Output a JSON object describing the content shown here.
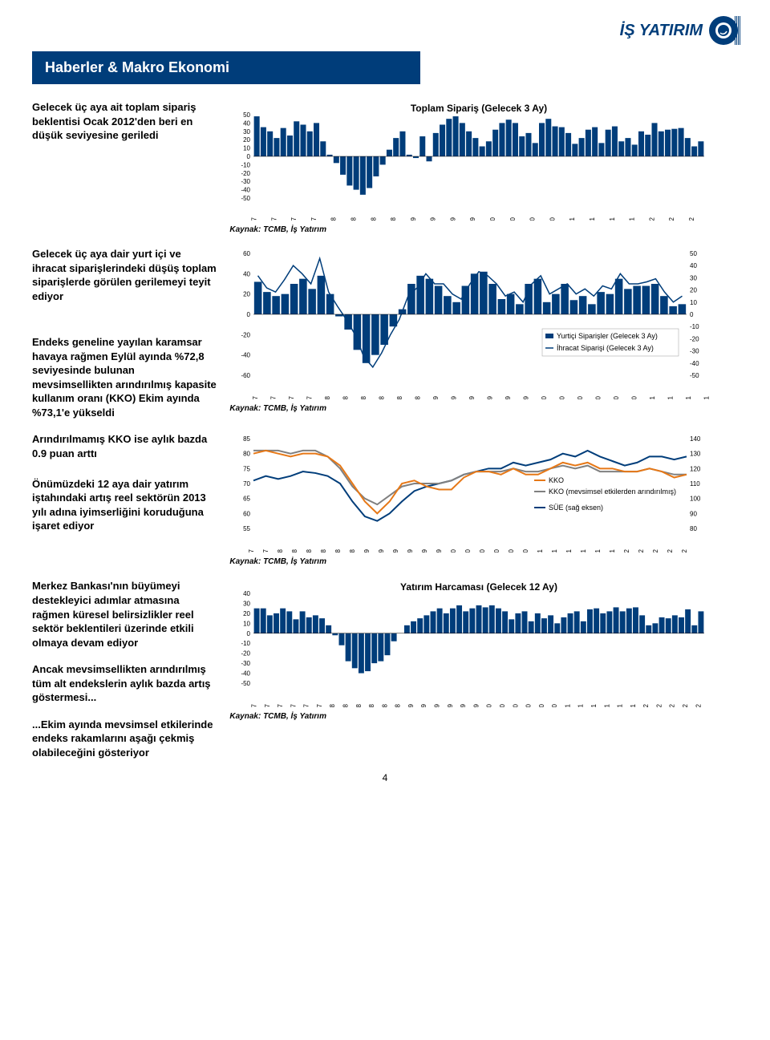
{
  "logo": {
    "text": "İŞ YATIRIM"
  },
  "banner": "Haberler & Makro Ekonomi",
  "page_number": "4",
  "source_label": "Kaynak: TCMB, İş Yatırım",
  "paragraphs": {
    "p1": "Gelecek üç aya ait toplam sipariş beklentisi Ocak 2012'den beri en düşük seviyesine geriledi",
    "p2": "Gelecek üç aya dair yurt içi ve ihracat siparişlerindeki düşüş toplam siparişlerde görülen gerilemeyi teyit ediyor",
    "p3": "Endeks geneline yayılan karamsar havaya rağmen Eylül ayında %72,8 seviyesinde bulunan mevsimsellikten arındırılmış kapasite kullanım oranı (KKO) Ekim ayında %73,1'e yükseldi",
    "p4": "Arındırılmamış KKO ise aylık bazda 0.9 puan arttı",
    "p5": "Önümüzdeki 12 aya dair yatırım iştahındaki artış reel sektörün 2013 yılı adına iyimserliğini koruduğuna işaret ediyor",
    "p6": "Merkez Bankası'nın büyümeyi destekleyici adımlar atmasına rağmen küresel belirsizlikler reel sektör beklentileri üzerinde etkili olmaya devam ediyor",
    "p7": "Ancak mevsimsellikten arındırılmış tüm alt endekslerin aylık bazda artış göstermesi...",
    "p8": "...Ekim ayında mevsimsel etkilerinde endeks rakamlarını aşağı çekmiş olabileceğini gösteriyor"
  },
  "chart1": {
    "type": "bar",
    "title": "Toplam Sipariş (Gelecek 3 Ay)",
    "ylim": [
      -50,
      50
    ],
    "ytick_step": 10,
    "bar_color": "#003d7a",
    "background_color": "#ffffff",
    "x_labels": [
      "03/07",
      "06/07",
      "09/07",
      "12/07",
      "03/08",
      "06/08",
      "09/08",
      "12/08",
      "03/09",
      "06/09",
      "09/09",
      "12/09",
      "03/10",
      "06/10",
      "09/10",
      "12/10",
      "03/11",
      "06/11",
      "09/11",
      "12/11",
      "03/12",
      "06/12",
      "09/12"
    ],
    "values": [
      48,
      35,
      30,
      22,
      34,
      25,
      42,
      38,
      30,
      40,
      18,
      2,
      -8,
      -22,
      -35,
      -40,
      -46,
      -38,
      -24,
      -10,
      8,
      22,
      30,
      2,
      -2,
      24,
      -6,
      28,
      38,
      45,
      48,
      40,
      30,
      22,
      12,
      18,
      32,
      40,
      44,
      40,
      24,
      28,
      16,
      40,
      45,
      36,
      35,
      28,
      15,
      22,
      32,
      35,
      16,
      32,
      36,
      18,
      22,
      14,
      30,
      26,
      40,
      30,
      32,
      33,
      34,
      22,
      12,
      18
    ]
  },
  "chart2": {
    "type": "line+bar",
    "ylim_left": [
      -60,
      60
    ],
    "ytick_left": 20,
    "ylim_right": [
      -50,
      50
    ],
    "ytick_right": 10,
    "bar_color": "#003d7a",
    "line_color": "#003d7a",
    "legend": {
      "s1": "Yurtiçi Siparişler (Gelecek 3 Ay)",
      "s2": "İhracat Siparişi (Gelecek 3 Ay)"
    },
    "x_labels": [
      "05/07",
      "07/07",
      "09/07",
      "11/07",
      "01/08",
      "03/08",
      "05/08",
      "07/08",
      "09/08",
      "11/08",
      "01/09",
      "03/09",
      "05/09",
      "07/09",
      "09/09",
      "11/09",
      "01/10",
      "03/10",
      "05/10",
      "07/10",
      "09/10",
      "11/10",
      "01/11",
      "03/11",
      "05/11",
      "07/11",
      "09/11",
      "11/11",
      "01/12",
      "03/12",
      "05/12",
      "07/12",
      "09/12"
    ],
    "bar_values": [
      32,
      22,
      18,
      20,
      30,
      35,
      25,
      38,
      20,
      -2,
      -15,
      -35,
      -48,
      -40,
      -30,
      -12,
      5,
      30,
      38,
      35,
      28,
      18,
      12,
      28,
      40,
      42,
      30,
      15,
      20,
      10,
      30,
      35,
      12,
      20,
      30,
      14,
      18,
      10,
      22,
      20,
      35,
      25,
      28,
      28,
      30,
      18,
      8,
      10
    ],
    "line_values": [
      38,
      26,
      22,
      34,
      48,
      40,
      30,
      55,
      22,
      8,
      -5,
      -20,
      -42,
      -52,
      -38,
      -20,
      -5,
      18,
      26,
      40,
      30,
      30,
      20,
      15,
      30,
      42,
      38,
      30,
      18,
      22,
      12,
      30,
      38,
      20,
      25,
      30,
      20,
      25,
      18,
      28,
      25,
      40,
      30,
      30,
      32,
      35,
      22,
      12,
      18
    ]
  },
  "chart3": {
    "type": "line",
    "ylim_left": [
      55,
      85
    ],
    "ytick_left": 5,
    "ylim_right": [
      80,
      140
    ],
    "ytick_right": 10,
    "legend": {
      "s1": "KKO",
      "s2": "KKO (mevsimsel etkilerden arındırılmış)",
      "s3": "SÜE (sağ eksen)"
    },
    "colors": {
      "s1": "#e67817",
      "s2": "#808080",
      "s3": "#003d7a"
    },
    "x_labels": [
      "09/07",
      "11/07",
      "01/08",
      "03/08",
      "05/08",
      "07/08",
      "09/08",
      "11/08",
      "01/09",
      "03/09",
      "05/09",
      "07/09",
      "09/09",
      "11/09",
      "01/10",
      "03/10",
      "05/10",
      "07/10",
      "09/10",
      "11/10",
      "01/11",
      "03/11",
      "05/11",
      "07/11",
      "09/11",
      "11/11",
      "01/12",
      "03/12",
      "05/12",
      "07/12",
      "09/12"
    ],
    "s1_values": [
      80,
      81,
      80,
      79,
      80,
      80,
      79,
      76,
      70,
      64,
      60,
      64,
      70,
      71,
      69,
      68,
      68,
      72,
      74,
      74,
      73,
      75,
      73,
      73,
      75,
      77,
      76,
      77,
      75,
      75,
      74,
      74,
      75,
      74,
      72,
      73
    ],
    "s2_values": [
      81,
      81,
      81,
      80,
      81,
      81,
      79,
      75,
      69,
      65,
      63,
      66,
      69,
      70,
      70,
      70,
      71,
      73,
      74,
      74,
      74,
      75,
      74,
      74,
      75,
      76,
      75,
      76,
      74,
      74,
      74,
      74,
      75,
      74,
      73,
      73
    ],
    "s3_values": [
      112,
      115,
      113,
      115,
      118,
      117,
      115,
      110,
      98,
      88,
      85,
      90,
      98,
      105,
      108,
      110,
      112,
      116,
      118,
      120,
      120,
      124,
      122,
      124,
      126,
      130,
      128,
      132,
      128,
      125,
      122,
      124,
      128,
      128,
      126,
      128
    ]
  },
  "chart4": {
    "type": "bar",
    "title": "Yatırım Harcaması (Gelecek 12 Ay)",
    "ylim": [
      -50,
      40
    ],
    "ytick_step": 10,
    "bar_color": "#003d7a",
    "x_labels": [
      "01-07",
      "03-07",
      "05-07",
      "07-07",
      "09-07",
      "11-07",
      "01-08",
      "03-08",
      "05-08",
      "07-08",
      "09-08",
      "11-08",
      "01-09",
      "03-09",
      "05-09",
      "07-09",
      "09-09",
      "11-09",
      "01-10",
      "03-10",
      "05-10",
      "07-10",
      "09-10",
      "11-10",
      "01-11",
      "03-11",
      "05-11",
      "07-11",
      "09-11",
      "11-11",
      "01-12",
      "03-12",
      "05-12",
      "07-12",
      "09-12"
    ],
    "values": [
      25,
      25,
      18,
      20,
      25,
      22,
      14,
      22,
      16,
      18,
      15,
      8,
      -2,
      -12,
      -28,
      -35,
      -40,
      -38,
      -30,
      -28,
      -22,
      -8,
      0,
      8,
      12,
      15,
      18,
      22,
      25,
      20,
      25,
      28,
      22,
      25,
      28,
      26,
      28,
      25,
      22,
      14,
      20,
      22,
      12,
      20,
      15,
      18,
      10,
      16,
      20,
      22,
      12,
      24,
      25,
      20,
      22,
      26,
      22,
      25,
      26,
      18,
      8,
      10,
      16,
      15,
      18,
      16,
      24,
      8,
      22
    ]
  }
}
